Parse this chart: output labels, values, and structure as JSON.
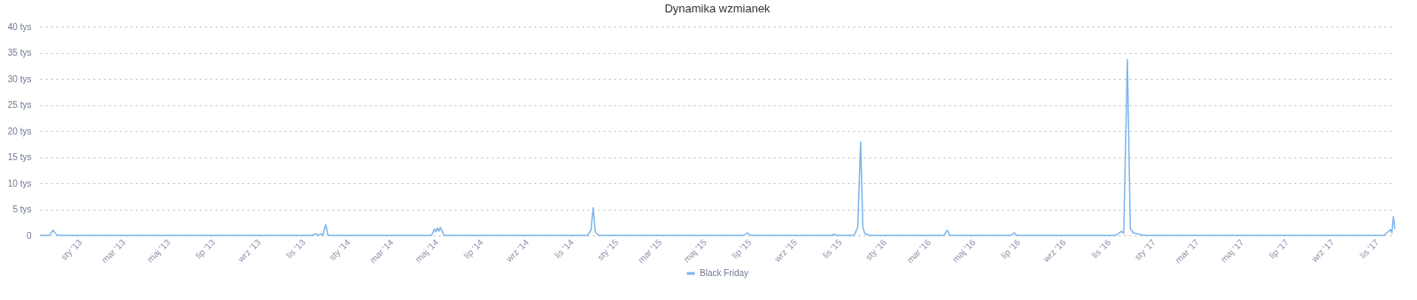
{
  "chart_data": {
    "type": "line",
    "title": "Dynamika wzmianek",
    "x": [
      "2012-11-07",
      "2012-11-20",
      "2012-11-25",
      "2012-11-30",
      "2012-12-05",
      "2013-11-12",
      "2013-11-18",
      "2013-11-21",
      "2013-11-24",
      "2013-11-27",
      "2013-12-01",
      "2013-12-04",
      "2013-12-08",
      "2014-04-24",
      "2014-04-28",
      "2014-04-30",
      "2014-05-02",
      "2014-05-04",
      "2014-05-06",
      "2014-05-08",
      "2014-05-09",
      "2014-05-11",
      "2014-11-22",
      "2014-11-27",
      "2014-11-30",
      "2014-12-03",
      "2014-12-08",
      "2015-06-23",
      "2015-06-28",
      "2015-07-02",
      "2015-10-20",
      "2015-10-24",
      "2015-10-28",
      "2015-11-20",
      "2015-11-25",
      "2015-11-29",
      "2015-12-02",
      "2015-12-05",
      "2015-12-12",
      "2016-03-21",
      "2016-03-26",
      "2016-03-29",
      "2016-06-20",
      "2016-06-25",
      "2016-06-28",
      "2016-11-10",
      "2016-11-18",
      "2016-11-21",
      "2016-11-26",
      "2016-11-30",
      "2016-12-04",
      "2016-12-12",
      "2016-12-20",
      "2017-11-10",
      "2017-11-19",
      "2017-11-21",
      "2017-11-23",
      "2017-11-25"
    ],
    "series": [
      {
        "name": "Black Friday",
        "color": "#7cb5ec",
        "values": [
          0,
          0,
          1.0,
          0.1,
          0,
          0,
          0.3,
          0,
          0.3,
          0,
          2.1,
          0.1,
          0,
          0,
          1.2,
          0.7,
          1.4,
          0.8,
          1.5,
          1.0,
          0.7,
          0,
          0,
          1.0,
          5.3,
          0.6,
          0,
          0,
          0.5,
          0,
          0,
          0.2,
          0,
          0,
          1.5,
          17.9,
          1.5,
          0.3,
          0,
          0,
          1.0,
          0,
          0,
          0.5,
          0,
          0,
          0.8,
          0.4,
          33.7,
          1.3,
          0.5,
          0.2,
          0,
          0,
          1.1,
          0.5,
          3.6,
          1.2
        ]
      }
    ],
    "xlim": [
      "2012-11-07",
      "2017-11-25"
    ],
    "xticks": [
      {
        "value": "2013-01-01",
        "label": "sty '13"
      },
      {
        "value": "2013-03-01",
        "label": "mar '13"
      },
      {
        "value": "2013-05-01",
        "label": "maj '13"
      },
      {
        "value": "2013-07-01",
        "label": "lip '13"
      },
      {
        "value": "2013-09-01",
        "label": "wrz '13"
      },
      {
        "value": "2013-11-01",
        "label": "lis '13"
      },
      {
        "value": "2014-01-01",
        "label": "sty '14"
      },
      {
        "value": "2014-03-01",
        "label": "mar '14"
      },
      {
        "value": "2014-05-01",
        "label": "maj '14"
      },
      {
        "value": "2014-07-01",
        "label": "lip '14"
      },
      {
        "value": "2014-09-01",
        "label": "wrz '14"
      },
      {
        "value": "2014-11-01",
        "label": "lis '14"
      },
      {
        "value": "2015-01-01",
        "label": "sty '15"
      },
      {
        "value": "2015-03-01",
        "label": "mar '15"
      },
      {
        "value": "2015-05-01",
        "label": "maj '15"
      },
      {
        "value": "2015-07-01",
        "label": "lip '15"
      },
      {
        "value": "2015-09-01",
        "label": "wrz '15"
      },
      {
        "value": "2015-11-01",
        "label": "lis '15"
      },
      {
        "value": "2016-01-01",
        "label": "sty '16"
      },
      {
        "value": "2016-03-01",
        "label": "mar '16"
      },
      {
        "value": "2016-05-01",
        "label": "maj '16"
      },
      {
        "value": "2016-07-01",
        "label": "lip '16"
      },
      {
        "value": "2016-09-01",
        "label": "wrz '16"
      },
      {
        "value": "2016-11-01",
        "label": "lis '16"
      },
      {
        "value": "2017-01-01",
        "label": "sty '17"
      },
      {
        "value": "2017-03-01",
        "label": "mar '17"
      },
      {
        "value": "2017-05-01",
        "label": "maj '17"
      },
      {
        "value": "2017-07-01",
        "label": "lip '17"
      },
      {
        "value": "2017-09-01",
        "label": "wrz '17"
      },
      {
        "value": "2017-11-01",
        "label": "lis '17"
      }
    ],
    "ylim": [
      0,
      40
    ],
    "yticks": [
      0,
      {
        "value": 5,
        "label": "5 tys"
      },
      {
        "value": 10,
        "label": "10 tys"
      },
      {
        "value": 15,
        "label": "15 tys"
      },
      {
        "value": 20,
        "label": "20 tys"
      },
      {
        "value": 25,
        "label": "25 tys"
      },
      {
        "value": 30,
        "label": "30 tys"
      },
      {
        "value": 35,
        "label": "35 tys"
      },
      {
        "value": 40,
        "label": "40 tys"
      }
    ],
    "grid": "y",
    "legend": "bottom",
    "marker": "none"
  }
}
